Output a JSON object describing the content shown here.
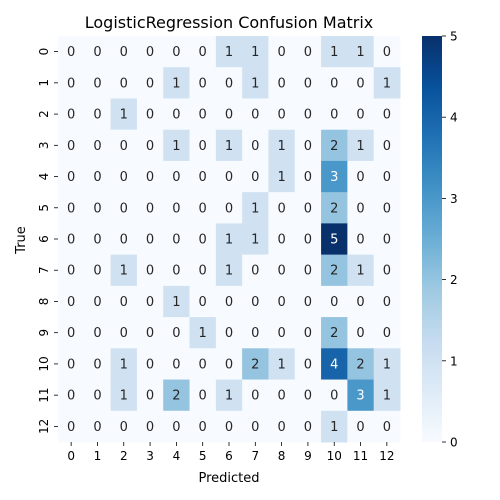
{
  "chart_data": {
    "type": "heatmap",
    "title": "LogisticRegression Confusion Matrix",
    "xlabel": "Predicted",
    "ylabel": "True",
    "x_ticks": [
      "0",
      "1",
      "2",
      "3",
      "4",
      "5",
      "6",
      "7",
      "8",
      "9",
      "10",
      "11",
      "12"
    ],
    "y_ticks": [
      "0",
      "1",
      "2",
      "3",
      "4",
      "5",
      "6",
      "7",
      "8",
      "9",
      "10",
      "11",
      "12"
    ],
    "matrix": [
      [
        0,
        0,
        0,
        0,
        0,
        0,
        1,
        1,
        0,
        0,
        1,
        1,
        0
      ],
      [
        0,
        0,
        0,
        0,
        1,
        0,
        0,
        1,
        0,
        0,
        0,
        0,
        1
      ],
      [
        0,
        0,
        1,
        0,
        0,
        0,
        0,
        0,
        0,
        0,
        0,
        0,
        0
      ],
      [
        0,
        0,
        0,
        0,
        1,
        0,
        1,
        0,
        1,
        0,
        2,
        1,
        0
      ],
      [
        0,
        0,
        0,
        0,
        0,
        0,
        0,
        0,
        1,
        0,
        3,
        0,
        0
      ],
      [
        0,
        0,
        0,
        0,
        0,
        0,
        0,
        1,
        0,
        0,
        2,
        0,
        0
      ],
      [
        0,
        0,
        0,
        0,
        0,
        0,
        1,
        1,
        0,
        0,
        5,
        0,
        0
      ],
      [
        0,
        0,
        1,
        0,
        0,
        0,
        1,
        0,
        0,
        0,
        2,
        1,
        0
      ],
      [
        0,
        0,
        0,
        0,
        1,
        0,
        0,
        0,
        0,
        0,
        0,
        0,
        0
      ],
      [
        0,
        0,
        0,
        0,
        0,
        1,
        0,
        0,
        0,
        0,
        2,
        0,
        0
      ],
      [
        0,
        0,
        1,
        0,
        0,
        0,
        0,
        2,
        1,
        0,
        4,
        2,
        1
      ],
      [
        0,
        0,
        1,
        0,
        2,
        0,
        1,
        0,
        0,
        0,
        0,
        3,
        1
      ],
      [
        0,
        0,
        0,
        0,
        0,
        0,
        0,
        0,
        0,
        0,
        1,
        0,
        0
      ]
    ],
    "colorbar": {
      "min": 0,
      "max": 5,
      "ticks": [
        "0",
        "1",
        "2",
        "3",
        "4",
        "5"
      ]
    },
    "colormap": "Blues",
    "colors": {
      "low": "#f7fbff",
      "high": "#08306b"
    }
  }
}
